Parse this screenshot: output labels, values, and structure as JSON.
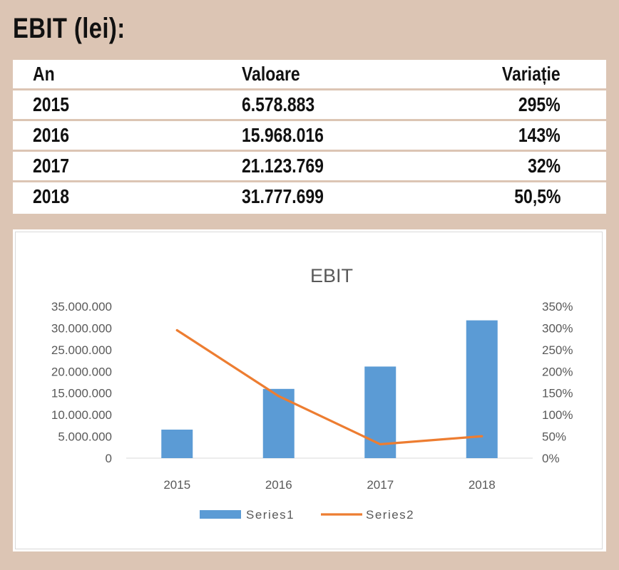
{
  "heading": "EBIT (lei):",
  "table": {
    "headers": [
      "An",
      "Valoare",
      "Variație"
    ],
    "rows": [
      [
        "2015",
        "6.578.883",
        "295%"
      ],
      [
        "2016",
        "15.968.016",
        "143%"
      ],
      [
        "2017",
        "21.123.769",
        "32%"
      ],
      [
        "2018",
        "31.777.699",
        "50,5%"
      ]
    ]
  },
  "chart_data": {
    "type": "bar",
    "title": "EBIT",
    "categories": [
      "2015",
      "2016",
      "2017",
      "2018"
    ],
    "series": [
      {
        "name": "Series1",
        "type": "bar",
        "axis": "left",
        "values": [
          6578883,
          15968016,
          21123769,
          31777699
        ],
        "color": "#5b9bd5"
      },
      {
        "name": "Series2",
        "type": "line",
        "axis": "right",
        "values": [
          295,
          143,
          32,
          50.5
        ],
        "color": "#ed7d31"
      }
    ],
    "y_left": {
      "min": 0,
      "max": 35000000,
      "step": 5000000,
      "tick_labels": [
        "0",
        "5.000.000",
        "10.000.000",
        "15.000.000",
        "20.000.000",
        "25.000.000",
        "30.000.000",
        "35.000.000"
      ]
    },
    "y_right": {
      "min": 0,
      "max": 350,
      "step": 50,
      "tick_labels": [
        "0%",
        "50%",
        "100%",
        "150%",
        "200%",
        "250%",
        "300%",
        "350%"
      ]
    },
    "legend": "bottom",
    "grid": false
  }
}
